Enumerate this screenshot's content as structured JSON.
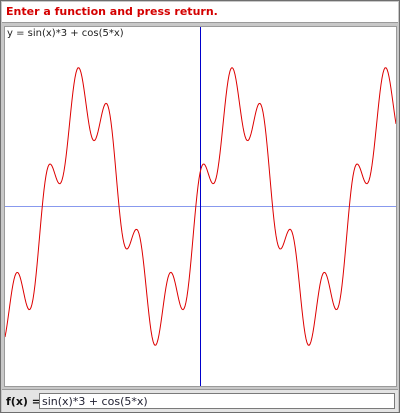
{
  "message": "Enter a function and press return.",
  "graph": {
    "formula_label": "y = sin(x)*3 + cos(5*x)",
    "x_range": [
      -8.0,
      8.0
    ],
    "y_range": [
      -5.0,
      5.0
    ],
    "axis_color": "#0000cc",
    "grid_color": "#8899ee",
    "curve_color": "#dd0000"
  },
  "input": {
    "label": "f(x) =",
    "value": "sin(x)*3 + cos(5*x)"
  }
}
